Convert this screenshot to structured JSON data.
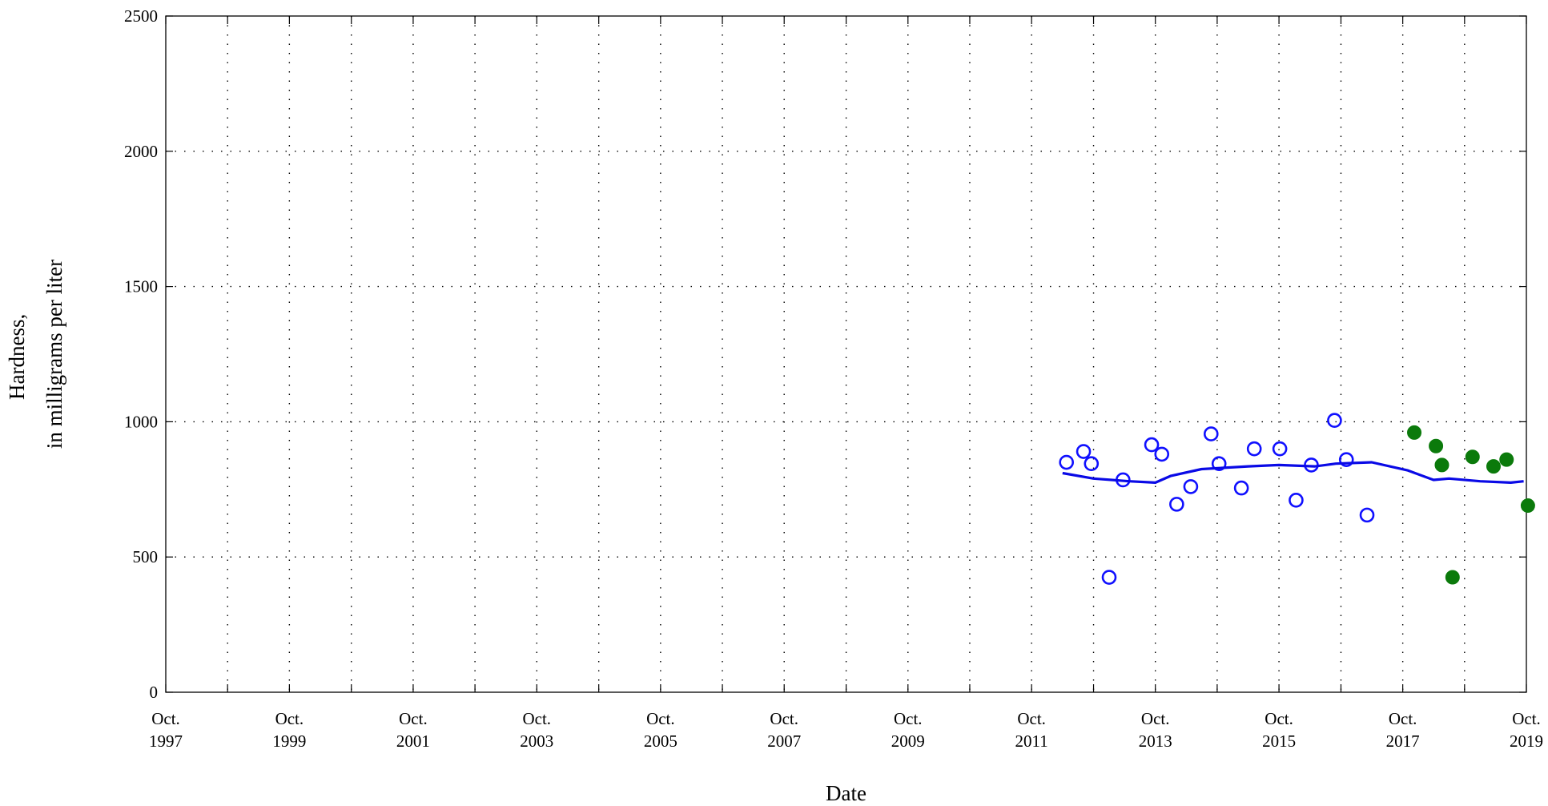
{
  "chart_data": {
    "type": "scatter",
    "xlabel": "Date",
    "ylabel_lines": [
      "Hardness,",
      "in milligrams per liter"
    ],
    "ylim": [
      0,
      2500
    ],
    "yticks": [
      0,
      500,
      1000,
      1500,
      2000,
      2500
    ],
    "xlim": [
      "1997-10-01",
      "2019-10-01"
    ],
    "xticks": [
      {
        "date": "1997-10-01",
        "line1": "Oct.",
        "line2": "1997"
      },
      {
        "date": "1999-10-01",
        "line1": "Oct.",
        "line2": "1999"
      },
      {
        "date": "2001-10-01",
        "line1": "Oct.",
        "line2": "2001"
      },
      {
        "date": "2003-10-01",
        "line1": "Oct.",
        "line2": "2003"
      },
      {
        "date": "2005-10-01",
        "line1": "Oct.",
        "line2": "2005"
      },
      {
        "date": "2007-10-01",
        "line1": "Oct.",
        "line2": "2007"
      },
      {
        "date": "2009-10-01",
        "line1": "Oct.",
        "line2": "2009"
      },
      {
        "date": "2011-10-01",
        "line1": "Oct.",
        "line2": "2011"
      },
      {
        "date": "2013-10-01",
        "line1": "Oct.",
        "line2": "2013"
      },
      {
        "date": "2015-10-01",
        "line1": "Oct.",
        "line2": "2015"
      },
      {
        "date": "2017-10-01",
        "line1": "Oct.",
        "line2": "2017"
      },
      {
        "date": "2019-10-01",
        "line1": "Oct.",
        "line2": "2019"
      }
    ],
    "grid": true,
    "colors": {
      "open_points": "#1010ff",
      "trend_line": "#0a0ae6",
      "filled_points": "#0b7a0b",
      "grid": "#000000"
    },
    "series": [
      {
        "style": "open-circle",
        "points": [
          {
            "x": "2012-04-24",
            "y": 850
          },
          {
            "x": "2012-08-03",
            "y": 890
          },
          {
            "x": "2012-09-18",
            "y": 845
          },
          {
            "x": "2013-01-01",
            "y": 425
          },
          {
            "x": "2013-03-24",
            "y": 785
          },
          {
            "x": "2013-09-09",
            "y": 915
          },
          {
            "x": "2013-11-08",
            "y": 880
          },
          {
            "x": "2014-02-04",
            "y": 695
          },
          {
            "x": "2014-04-28",
            "y": 760
          },
          {
            "x": "2014-08-26",
            "y": 955
          },
          {
            "x": "2014-10-12",
            "y": 845
          },
          {
            "x": "2015-02-21",
            "y": 755
          },
          {
            "x": "2015-05-08",
            "y": 900
          },
          {
            "x": "2015-10-06",
            "y": 900
          },
          {
            "x": "2016-01-10",
            "y": 710
          },
          {
            "x": "2016-04-09",
            "y": 840
          },
          {
            "x": "2016-08-24",
            "y": 1005
          },
          {
            "x": "2016-11-02",
            "y": 860
          },
          {
            "x": "2017-03-04",
            "y": 655
          }
        ]
      },
      {
        "style": "line",
        "points": [
          {
            "x": "2012-04-01",
            "y": 810
          },
          {
            "x": "2012-10-01",
            "y": 790
          },
          {
            "x": "2013-05-01",
            "y": 780
          },
          {
            "x": "2013-10-01",
            "y": 775
          },
          {
            "x": "2014-01-01",
            "y": 800
          },
          {
            "x": "2014-07-01",
            "y": 825
          },
          {
            "x": "2015-04-01",
            "y": 835
          },
          {
            "x": "2015-10-01",
            "y": 840
          },
          {
            "x": "2016-05-01",
            "y": 835
          },
          {
            "x": "2016-09-01",
            "y": 845
          },
          {
            "x": "2017-04-01",
            "y": 850
          },
          {
            "x": "2017-11-01",
            "y": 820
          },
          {
            "x": "2018-04-01",
            "y": 785
          },
          {
            "x": "2018-07-01",
            "y": 790
          },
          {
            "x": "2019-01-01",
            "y": 780
          },
          {
            "x": "2019-07-01",
            "y": 775
          },
          {
            "x": "2019-09-15",
            "y": 780
          }
        ]
      },
      {
        "style": "filled-circle",
        "points": [
          {
            "x": "2017-12-08",
            "y": 960
          },
          {
            "x": "2018-04-15",
            "y": 910
          },
          {
            "x": "2018-05-20",
            "y": 840
          },
          {
            "x": "2018-07-22",
            "y": 425
          },
          {
            "x": "2018-11-17",
            "y": 870
          },
          {
            "x": "2019-03-21",
            "y": 835
          },
          {
            "x": "2019-06-06",
            "y": 860
          },
          {
            "x": "2019-10-10",
            "y": 690
          }
        ]
      }
    ]
  }
}
